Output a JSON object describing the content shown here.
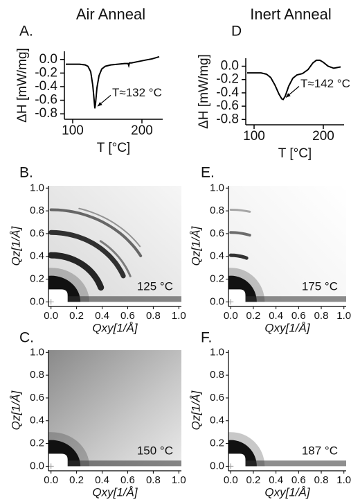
{
  "chart_data": [
    {
      "type": "line",
      "panel": "A.",
      "title": "Air Anneal",
      "xlabel": "T [°C]",
      "ylabel": "ΔH [mW/mg]",
      "annotation": "T≈132 °C",
      "x": [
        90,
        100,
        110,
        118,
        122,
        126,
        129,
        131,
        132,
        133,
        135,
        138,
        142,
        147,
        155,
        165,
        175,
        180,
        181,
        182,
        185,
        195,
        205,
        215,
        225
      ],
      "values": [
        -0.07,
        -0.07,
        -0.07,
        -0.08,
        -0.1,
        -0.18,
        -0.38,
        -0.6,
        -0.72,
        -0.65,
        -0.42,
        -0.24,
        -0.14,
        -0.1,
        -0.08,
        -0.07,
        -0.06,
        -0.06,
        -0.09,
        -0.05,
        -0.05,
        -0.03,
        -0.01,
        0.01,
        0.04
      ],
      "color": "#000000",
      "xlim": [
        88,
        230
      ],
      "ylim": [
        -0.88,
        0.12
      ],
      "xticks": [
        100,
        200
      ],
      "yticks": [
        {
          "value": 0,
          "label": "0.0"
        },
        -0.2,
        -0.4,
        -0.6,
        -0.8
      ]
    },
    {
      "type": "image",
      "panel": "B.",
      "xlabel": "Qxy[1/Å]",
      "ylabel": "Qz[1/Å]",
      "annotation": "125 °C",
      "xlim": [
        -0.02,
        1.02
      ],
      "ylim": [
        -0.04,
        1.02
      ],
      "xticks": [
        {
          "value": 0,
          "label": "0.0"
        },
        0.2,
        0.4,
        0.6,
        0.8,
        {
          "value": 1,
          "label": "1.0"
        }
      ],
      "yticks": [
        {
          "value": 0,
          "label": "0.0"
        },
        0.2,
        0.4,
        0.6,
        0.8,
        {
          "value": 1,
          "label": "1.0"
        }
      ]
    },
    {
      "type": "image",
      "panel": "C.",
      "xlabel": "Qxy[1/Å]",
      "ylabel": "Qz[1/Å]",
      "annotation": "150 °C",
      "xlim": [
        -0.02,
        1.02
      ],
      "ylim": [
        -0.04,
        1.02
      ],
      "xticks": [
        {
          "value": 0,
          "label": "0.0"
        },
        0.2,
        0.4,
        0.6,
        0.8,
        {
          "value": 1,
          "label": "1.0"
        }
      ],
      "yticks": [
        {
          "value": 0,
          "label": "0.0"
        },
        0.2,
        0.4,
        0.6,
        0.8,
        {
          "value": 1,
          "label": "1.0"
        }
      ]
    },
    {
      "type": "line",
      "panel": "D",
      "title": "Inert Anneal",
      "xlabel": "T [°C]",
      "ylabel": "ΔH [mW/mg]",
      "annotation": "T≈142 °C",
      "x": [
        90,
        100,
        110,
        118,
        124,
        130,
        136,
        140,
        142,
        145,
        150,
        156,
        162,
        170,
        178,
        185,
        190,
        195,
        200,
        207,
        215,
        225
      ],
      "values": [
        -0.1,
        -0.1,
        -0.1,
        -0.12,
        -0.17,
        -0.28,
        -0.42,
        -0.49,
        -0.5,
        -0.45,
        -0.3,
        -0.18,
        -0.13,
        -0.11,
        -0.05,
        0.05,
        0.09,
        0.09,
        0.06,
        0.0,
        -0.03,
        -0.01
      ],
      "color": "#000000",
      "xlim": [
        88,
        230
      ],
      "ylim": [
        -0.88,
        0.12
      ],
      "xticks": [
        100,
        200
      ],
      "yticks": [
        {
          "value": 0,
          "label": "0.0"
        },
        -0.2,
        -0.4,
        -0.6,
        -0.8
      ]
    },
    {
      "type": "image",
      "panel": "E.",
      "xlabel": "Qxy[1/Å]",
      "ylabel": "Qz[1/Å]",
      "annotation": "175 °C",
      "xlim": [
        -0.02,
        1.02
      ],
      "ylim": [
        -0.04,
        1.02
      ],
      "xticks": [
        {
          "value": 0,
          "label": "0.0"
        },
        0.2,
        0.4,
        0.6,
        0.8,
        {
          "value": 1,
          "label": "1.0"
        }
      ],
      "yticks": [
        {
          "value": 0,
          "label": "0.0"
        },
        0.2,
        0.4,
        0.6,
        0.8,
        {
          "value": 1,
          "label": "1.0"
        }
      ]
    },
    {
      "type": "image",
      "panel": "F.",
      "xlabel": "Qxy[1/Å]",
      "ylabel": "Qz[1/Å]",
      "annotation": "187 °C",
      "xlim": [
        -0.02,
        1.02
      ],
      "ylim": [
        -0.04,
        1.02
      ],
      "xticks": [
        {
          "value": 0,
          "label": "0.0"
        },
        0.2,
        0.4,
        0.6,
        0.8,
        {
          "value": 1,
          "label": "1.0"
        }
      ],
      "yticks": [
        {
          "value": 0,
          "label": "0.0"
        },
        0.2,
        0.4,
        0.6,
        0.8,
        {
          "value": 1,
          "label": "1.0"
        }
      ]
    }
  ]
}
